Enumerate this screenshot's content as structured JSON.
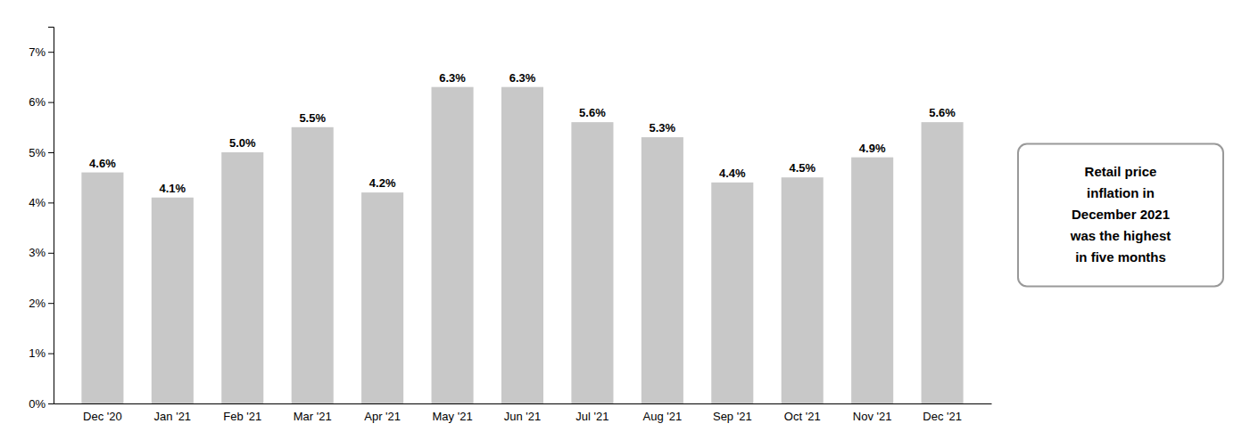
{
  "chart_data": {
    "type": "bar",
    "categories": [
      "Dec '20",
      "Jan '21",
      "Feb '21",
      "Mar '21",
      "Apr '21",
      "May '21",
      "Jun '21",
      "Jul '21",
      "Aug '21",
      "Sep '21",
      "Oct '21",
      "Nov '21",
      "Dec '21"
    ],
    "values": [
      4.6,
      4.1,
      5.0,
      5.5,
      4.2,
      6.3,
      6.3,
      5.6,
      5.3,
      4.4,
      4.5,
      4.9,
      5.6
    ],
    "value_labels": [
      "4.6%",
      "4.1%",
      "5.0%",
      "5.5%",
      "4.2%",
      "6.3%",
      "6.3%",
      "5.6%",
      "5.3%",
      "4.4%",
      "4.5%",
      "4.9%",
      "5.6%"
    ],
    "data_labels": true,
    "color": "#C8C8C8",
    "ylim": [
      0,
      7.5
    ],
    "yticks": [
      {
        "value": 0,
        "label": "0%"
      },
      {
        "value": 1,
        "label": "1%"
      },
      {
        "value": 2,
        "label": "2%"
      },
      {
        "value": 3,
        "label": "3%"
      },
      {
        "value": 4,
        "label": "4%"
      },
      {
        "value": 5,
        "label": "5%"
      },
      {
        "value": 6,
        "label": "6%"
      },
      {
        "value": 7,
        "label": "7%"
      }
    ],
    "grid": false,
    "annotation": "Retail price\ninflation in\nDecember 2021\nwas the highest\nin five months"
  }
}
